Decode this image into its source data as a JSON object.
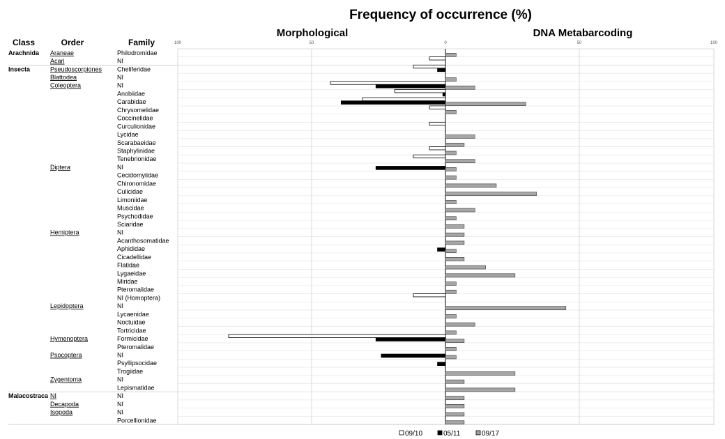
{
  "chart_data": {
    "type": "bar",
    "orientation": "horizontal",
    "title": "Frequency of occurrence (%)",
    "left_panel_title": "Morphological",
    "right_panel_title": "DNA Metabarcoding",
    "column_headers": {
      "class": "Class",
      "order": "Order",
      "family": "Family"
    },
    "left_axis_ticks": [
      "100",
      "50",
      "0"
    ],
    "right_axis_ticks": [
      "50",
      "100"
    ],
    "xlim_left": [
      100,
      0
    ],
    "xlim_right": [
      0,
      100
    ],
    "grid": true,
    "legend_position": "bottom",
    "legend": [
      {
        "label": "09/10",
        "color": "#ffffff"
      },
      {
        "label": "05/11",
        "color": "#000000"
      },
      {
        "label": "09/17",
        "color": "#a6a6a6"
      }
    ],
    "rows": [
      {
        "class": "Arachnida",
        "order": "Araneae",
        "family": "Philodromidae",
        "m0910": 0,
        "m0511": 0,
        "d0917": 4
      },
      {
        "class": "",
        "order": "Acari",
        "family": "NI",
        "m0910": 6,
        "m0511": 0,
        "d0917": 0
      },
      {
        "class": "Insecta",
        "order": "Pseudoscorpiones",
        "family": "Cheliferidae",
        "m0910": 12,
        "m0511": 3,
        "d0917": 0
      },
      {
        "class": "",
        "order": "Blattodea",
        "family": "NI",
        "m0910": 0,
        "m0511": 0,
        "d0917": 4
      },
      {
        "class": "",
        "order": "Coleoptera",
        "family": "NI",
        "m0910": 43,
        "m0511": 26,
        "d0917": 11
      },
      {
        "class": "",
        "order": "",
        "family": "Anobiidae",
        "m0910": 19,
        "m0511": 1,
        "d0917": 0
      },
      {
        "class": "",
        "order": "",
        "family": "Carabidae",
        "m0910": 31,
        "m0511": 39,
        "d0917": 30
      },
      {
        "class": "",
        "order": "",
        "family": "Chrysomelidae",
        "m0910": 6,
        "m0511": 0,
        "d0917": 4
      },
      {
        "class": "",
        "order": "",
        "family": "Coccinelidae",
        "m0910": 0,
        "m0511": 0,
        "d0917": 0
      },
      {
        "class": "",
        "order": "",
        "family": "Curculionidae",
        "m0910": 6,
        "m0511": 0,
        "d0917": 0
      },
      {
        "class": "",
        "order": "",
        "family": "Lycidae",
        "m0910": 0,
        "m0511": 0,
        "d0917": 11
      },
      {
        "class": "",
        "order": "",
        "family": "Scarabaeidae",
        "m0910": 0,
        "m0511": 0,
        "d0917": 7
      },
      {
        "class": "",
        "order": "",
        "family": "Staphylinidae",
        "m0910": 6,
        "m0511": 0,
        "d0917": 4
      },
      {
        "class": "",
        "order": "",
        "family": "Tenebrionidae",
        "m0910": 12,
        "m0511": 0,
        "d0917": 11
      },
      {
        "class": "",
        "order": "Diptera",
        "family": "NI",
        "m0910": 0,
        "m0511": 26,
        "d0917": 4
      },
      {
        "class": "",
        "order": "",
        "family": "Cecidomyiidae",
        "m0910": 0,
        "m0511": 0,
        "d0917": 4
      },
      {
        "class": "",
        "order": "",
        "family": "Chironomidae",
        "m0910": 0,
        "m0511": 0,
        "d0917": 19
      },
      {
        "class": "",
        "order": "",
        "family": "Culicidae",
        "m0910": 0,
        "m0511": 0,
        "d0917": 34
      },
      {
        "class": "",
        "order": "",
        "family": "Limoniidae",
        "m0910": 0,
        "m0511": 0,
        "d0917": 4
      },
      {
        "class": "",
        "order": "",
        "family": "Muscidae",
        "m0910": 0,
        "m0511": 0,
        "d0917": 11
      },
      {
        "class": "",
        "order": "",
        "family": "Psychodidae",
        "m0910": 0,
        "m0511": 0,
        "d0917": 4
      },
      {
        "class": "",
        "order": "",
        "family": "Sciaridae",
        "m0910": 0,
        "m0511": 0,
        "d0917": 7
      },
      {
        "class": "",
        "order": "Hemiptera",
        "family": "NI",
        "m0910": 0,
        "m0511": 0,
        "d0917": 7
      },
      {
        "class": "",
        "order": "",
        "family": "Acanthosomatidae",
        "m0910": 0,
        "m0511": 0,
        "d0917": 7
      },
      {
        "class": "",
        "order": "",
        "family": "Aphididae",
        "m0910": 0,
        "m0511": 3,
        "d0917": 4
      },
      {
        "class": "",
        "order": "",
        "family": "Cicadellidae",
        "m0910": 0,
        "m0511": 0,
        "d0917": 7
      },
      {
        "class": "",
        "order": "",
        "family": "Flatidae",
        "m0910": 0,
        "m0511": 0,
        "d0917": 15
      },
      {
        "class": "",
        "order": "",
        "family": "Lygaeidae",
        "m0910": 0,
        "m0511": 0,
        "d0917": 26
      },
      {
        "class": "",
        "order": "",
        "family": "Miridae",
        "m0910": 0,
        "m0511": 0,
        "d0917": 4
      },
      {
        "class": "",
        "order": "",
        "family": "Pteromalidae",
        "m0910": 0,
        "m0511": 0,
        "d0917": 4
      },
      {
        "class": "",
        "order": "",
        "family": "NI (Homoptera)",
        "m0910": 12,
        "m0511": 0,
        "d0917": 0
      },
      {
        "class": "",
        "order": "Lepidoptera",
        "family": "NI",
        "m0910": 0,
        "m0511": 0,
        "d0917": 45
      },
      {
        "class": "",
        "order": "",
        "family": "Lycaenidae",
        "m0910": 0,
        "m0511": 0,
        "d0917": 4
      },
      {
        "class": "",
        "order": "",
        "family": "Noctuidae",
        "m0910": 0,
        "m0511": 0,
        "d0917": 11
      },
      {
        "class": "",
        "order": "",
        "family": "Tortricidae",
        "m0910": 0,
        "m0511": 0,
        "d0917": 4
      },
      {
        "class": "",
        "order": "Hymenoptera",
        "family": "Formicidae",
        "m0910": 81,
        "m0511": 26,
        "d0917": 7
      },
      {
        "class": "",
        "order": "",
        "family": "Pteromalidae",
        "m0910": 0,
        "m0511": 0,
        "d0917": 4
      },
      {
        "class": "",
        "order": "Psocoptera",
        "family": "NI",
        "m0910": 0,
        "m0511": 24,
        "d0917": 4
      },
      {
        "class": "",
        "order": "",
        "family": "Psyllipsocidae",
        "m0910": 0,
        "m0511": 3,
        "d0917": 0
      },
      {
        "class": "",
        "order": "",
        "family": "Trogiidae",
        "m0910": 0,
        "m0511": 0,
        "d0917": 26
      },
      {
        "class": "",
        "order": "Zygentoma",
        "family": "NI",
        "m0910": 0,
        "m0511": 0,
        "d0917": 7
      },
      {
        "class": "",
        "order": "",
        "family": "Lepismatidae",
        "m0910": 0,
        "m0511": 0,
        "d0917": 26
      },
      {
        "class": "Malacostraca",
        "order": "NI",
        "family": "NI",
        "m0910": 0,
        "m0511": 0,
        "d0917": 7
      },
      {
        "class": "",
        "order": "Decapoda",
        "family": "NI",
        "m0910": 0,
        "m0511": 0,
        "d0917": 7
      },
      {
        "class": "",
        "order": "Isopoda",
        "family": "NI",
        "m0910": 0,
        "m0511": 0,
        "d0917": 7
      },
      {
        "class": "",
        "order": "",
        "family": "Porcellionidae",
        "m0910": 0,
        "m0511": 0,
        "d0917": 7
      }
    ]
  }
}
